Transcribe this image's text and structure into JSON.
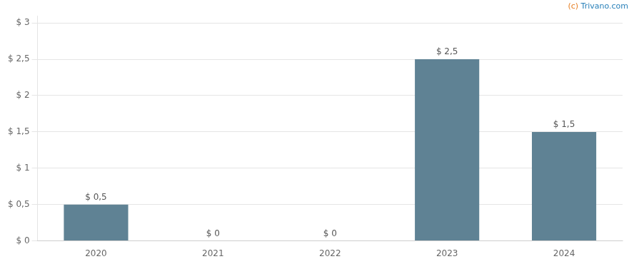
{
  "chart_data": {
    "type": "bar",
    "categories": [
      "2020",
      "2021",
      "2022",
      "2023",
      "2024"
    ],
    "values": [
      0.5,
      0.0,
      0.0,
      2.5,
      1.5
    ],
    "value_labels": [
      "$ 0,5",
      "$ 0",
      "$ 0",
      "$ 2,5",
      "$ 1,5"
    ],
    "data_labels": true,
    "color": "#5f8294",
    "ylim": [
      0,
      3.1
    ],
    "yticks": [
      {
        "value": 0.0,
        "label": "$ 0"
      },
      {
        "value": 0.5,
        "label": "$ 0,5"
      },
      {
        "value": 1.0,
        "label": "$ 1"
      },
      {
        "value": 1.5,
        "label": "$ 1,5"
      },
      {
        "value": 2.0,
        "label": "$ 2"
      },
      {
        "value": 2.5,
        "label": "$ 2,5"
      },
      {
        "value": 3.0,
        "label": "$ 3"
      }
    ],
    "grid": true,
    "annotations": [
      {
        "text": "(c) ",
        "color": "#e67e22"
      },
      {
        "text": "Trivano.com",
        "color": "#2980b9"
      }
    ]
  }
}
